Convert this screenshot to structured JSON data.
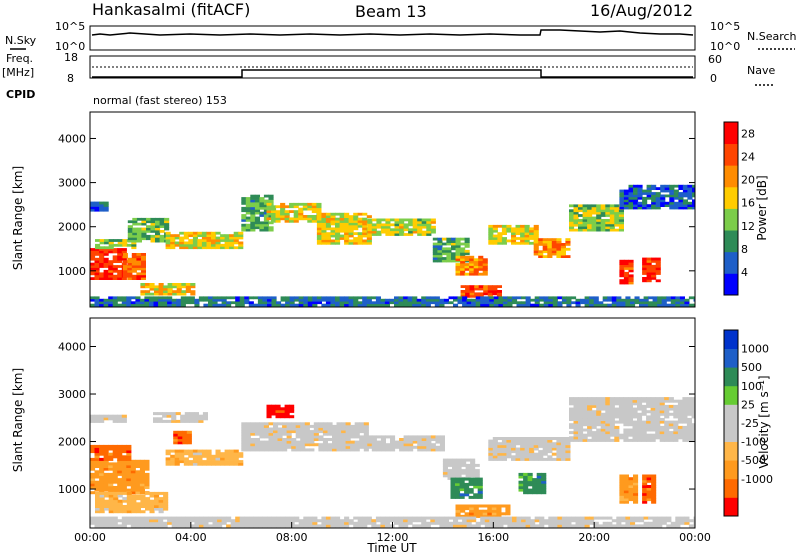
{
  "header": {
    "station": "Hankasalmi (fitACF)",
    "beam": "Beam 13",
    "date": "16/Aug/2012"
  },
  "noise_panel": {
    "left_label": "N.Sky",
    "right_label": "N.Search",
    "left_ticks": [
      "10^5",
      "10^0"
    ],
    "right_ticks": [
      "10^5",
      "10^0"
    ]
  },
  "freq_panel": {
    "left_label_1": "Freq.",
    "left_label_2": "[MHz]",
    "left_ticks": [
      "18",
      "8"
    ],
    "right_label": "Nave",
    "right_ticks": [
      "60",
      "0"
    ]
  },
  "cpid": {
    "label": "CPID",
    "mode": "normal (fast stereo) 153"
  },
  "colors": {
    "power_scale": [
      "#0000ff",
      "#1e5fc8",
      "#2e8b57",
      "#7ccd4a",
      "#ffcc00",
      "#ff8c00",
      "#ff4500",
      "#ff0000"
    ],
    "velocity_scale": [
      "#ff0000",
      "#ff6a00",
      "#ff9a1e",
      "#ffb648",
      "#c8c8c8",
      "#c8c8c8",
      "#66cc33",
      "#2e8b57",
      "#1e5fc8",
      "#0033cc"
    ]
  },
  "chart_data": [
    {
      "type": "heatmap",
      "name": "power",
      "ylabel": "Slant Range [km]",
      "ylim": [
        180,
        4600
      ],
      "y_ticks": [
        "1000",
        "2000",
        "3000",
        "4000"
      ],
      "y_tick_values": [
        1000,
        2000,
        3000,
        4000
      ],
      "xlim_hours": [
        0,
        24
      ],
      "colorbar": {
        "label": "Power [dB]",
        "ticks": [
          "4",
          "8",
          "12",
          "16",
          "20",
          "24",
          "28"
        ],
        "range": [
          0,
          30
        ]
      },
      "bands": [
        {
          "t0": 0.0,
          "t1": 1.3,
          "r0": 800,
          "r1": 1500,
          "level": 0.93
        },
        {
          "t0": 1.3,
          "t1": 2.2,
          "r0": 800,
          "r1": 1400,
          "level": 0.8
        },
        {
          "t0": 0.2,
          "t1": 1.8,
          "r0": 1500,
          "r1": 1700,
          "level": 0.45
        },
        {
          "t0": 0.0,
          "t1": 0.6,
          "r0": 2350,
          "r1": 2550,
          "level": 0.2
        },
        {
          "t0": 1.5,
          "t1": 3.0,
          "r0": 1650,
          "r1": 2150,
          "level": 0.4
        },
        {
          "t0": 3.0,
          "t1": 5.9,
          "r0": 1500,
          "r1": 1850,
          "level": 0.55
        },
        {
          "t0": 2.0,
          "t1": 4.0,
          "r0": 450,
          "r1": 700,
          "level": 0.6
        },
        {
          "t0": 6.0,
          "t1": 7.2,
          "r0": 1900,
          "r1": 2700,
          "level": 0.35
        },
        {
          "t0": 7.0,
          "t1": 9.0,
          "r0": 2100,
          "r1": 2500,
          "level": 0.55
        },
        {
          "t0": 9.0,
          "t1": 11.0,
          "r0": 1600,
          "r1": 2300,
          "level": 0.55
        },
        {
          "t0": 11.0,
          "t1": 13.6,
          "r0": 1800,
          "r1": 2150,
          "level": 0.5
        },
        {
          "t0": 13.6,
          "t1": 15.0,
          "r0": 1200,
          "r1": 1700,
          "level": 0.35
        },
        {
          "t0": 14.5,
          "t1": 15.6,
          "r0": 900,
          "r1": 1300,
          "level": 0.75
        },
        {
          "t0": 14.7,
          "t1": 16.2,
          "r0": 400,
          "r1": 650,
          "level": 0.85
        },
        {
          "t0": 15.8,
          "t1": 17.6,
          "r0": 1600,
          "r1": 2000,
          "level": 0.55
        },
        {
          "t0": 17.6,
          "t1": 19.0,
          "r0": 1300,
          "r1": 1700,
          "level": 0.7
        },
        {
          "t0": 19.0,
          "t1": 21.0,
          "r0": 1900,
          "r1": 2500,
          "level": 0.45
        },
        {
          "t0": 21.0,
          "t1": 21.5,
          "r0": 700,
          "r1": 1250,
          "level": 0.92
        },
        {
          "t0": 21.9,
          "t1": 22.5,
          "r0": 750,
          "r1": 1300,
          "level": 0.92
        },
        {
          "t0": 21.0,
          "t1": 24.0,
          "r0": 2400,
          "r1": 2900,
          "level": 0.15
        },
        {
          "t0": 0.0,
          "t1": 24.0,
          "r0": 200,
          "r1": 380,
          "level": 0.2
        }
      ]
    },
    {
      "type": "heatmap",
      "name": "velocity",
      "ylabel": "Slant Range [km]",
      "xlabel": "Time UT",
      "ylim": [
        180,
        4600
      ],
      "y_ticks": [
        "1000",
        "2000",
        "3000",
        "4000"
      ],
      "y_tick_values": [
        1000,
        2000,
        3000,
        4000
      ],
      "x_ticks": [
        "00:00",
        "04:00",
        "08:00",
        "12:00",
        "16:00",
        "20:00",
        "00:00"
      ],
      "x_tick_hours": [
        0,
        4,
        8,
        12,
        16,
        20,
        24
      ],
      "xlim_hours": [
        0,
        24
      ],
      "colorbar": {
        "label": "Velocity [m s⁻¹]",
        "ticks": [
          "1000",
          "500",
          "100",
          "25",
          "-25",
          "-100",
          "-500",
          "-1000"
        ]
      },
      "bands": [
        {
          "t0": 0.0,
          "t1": 2.3,
          "r0": 900,
          "r1": 1600,
          "level": 2
        },
        {
          "t0": 0.0,
          "t1": 1.5,
          "r0": 1600,
          "r1": 1900,
          "level": 1
        },
        {
          "t0": 0.2,
          "t1": 3.0,
          "r0": 500,
          "r1": 900,
          "level": 3
        },
        {
          "t0": 2.5,
          "t1": 4.5,
          "r0": 2400,
          "r1": 2600,
          "level": 4
        },
        {
          "t0": 3.3,
          "t1": 4.0,
          "r0": 1950,
          "r1": 2200,
          "level": 1
        },
        {
          "t0": 0.0,
          "t1": 1.3,
          "r0": 2400,
          "r1": 2550,
          "level": 4
        },
        {
          "t0": 3.0,
          "t1": 6.0,
          "r0": 1500,
          "r1": 1800,
          "level": 3
        },
        {
          "t0": 6.0,
          "t1": 11.0,
          "r0": 1800,
          "r1": 2400,
          "level": 4
        },
        {
          "t0": 7.0,
          "t1": 8.0,
          "r0": 2500,
          "r1": 2750,
          "level": 0
        },
        {
          "t0": 11.0,
          "t1": 14.0,
          "r0": 1800,
          "r1": 2100,
          "level": 4
        },
        {
          "t0": 14.0,
          "t1": 15.3,
          "r0": 1200,
          "r1": 1600,
          "level": 4
        },
        {
          "t0": 14.3,
          "t1": 15.5,
          "r0": 800,
          "r1": 1200,
          "level": 7
        },
        {
          "t0": 14.5,
          "t1": 16.5,
          "r0": 400,
          "r1": 650,
          "level": 2
        },
        {
          "t0": 15.8,
          "t1": 19.0,
          "r0": 1600,
          "r1": 2050,
          "level": 4
        },
        {
          "t0": 17.0,
          "t1": 18.0,
          "r0": 900,
          "r1": 1300,
          "level": 7
        },
        {
          "t0": 19.0,
          "t1": 24.0,
          "r0": 2000,
          "r1": 2900,
          "level": 4
        },
        {
          "t0": 21.0,
          "t1": 21.6,
          "r0": 700,
          "r1": 1300,
          "level": 2
        },
        {
          "t0": 21.9,
          "t1": 22.4,
          "r0": 700,
          "r1": 1300,
          "level": 1
        },
        {
          "t0": 0.0,
          "t1": 24.0,
          "r0": 200,
          "r1": 420,
          "level": 4
        }
      ]
    }
  ]
}
